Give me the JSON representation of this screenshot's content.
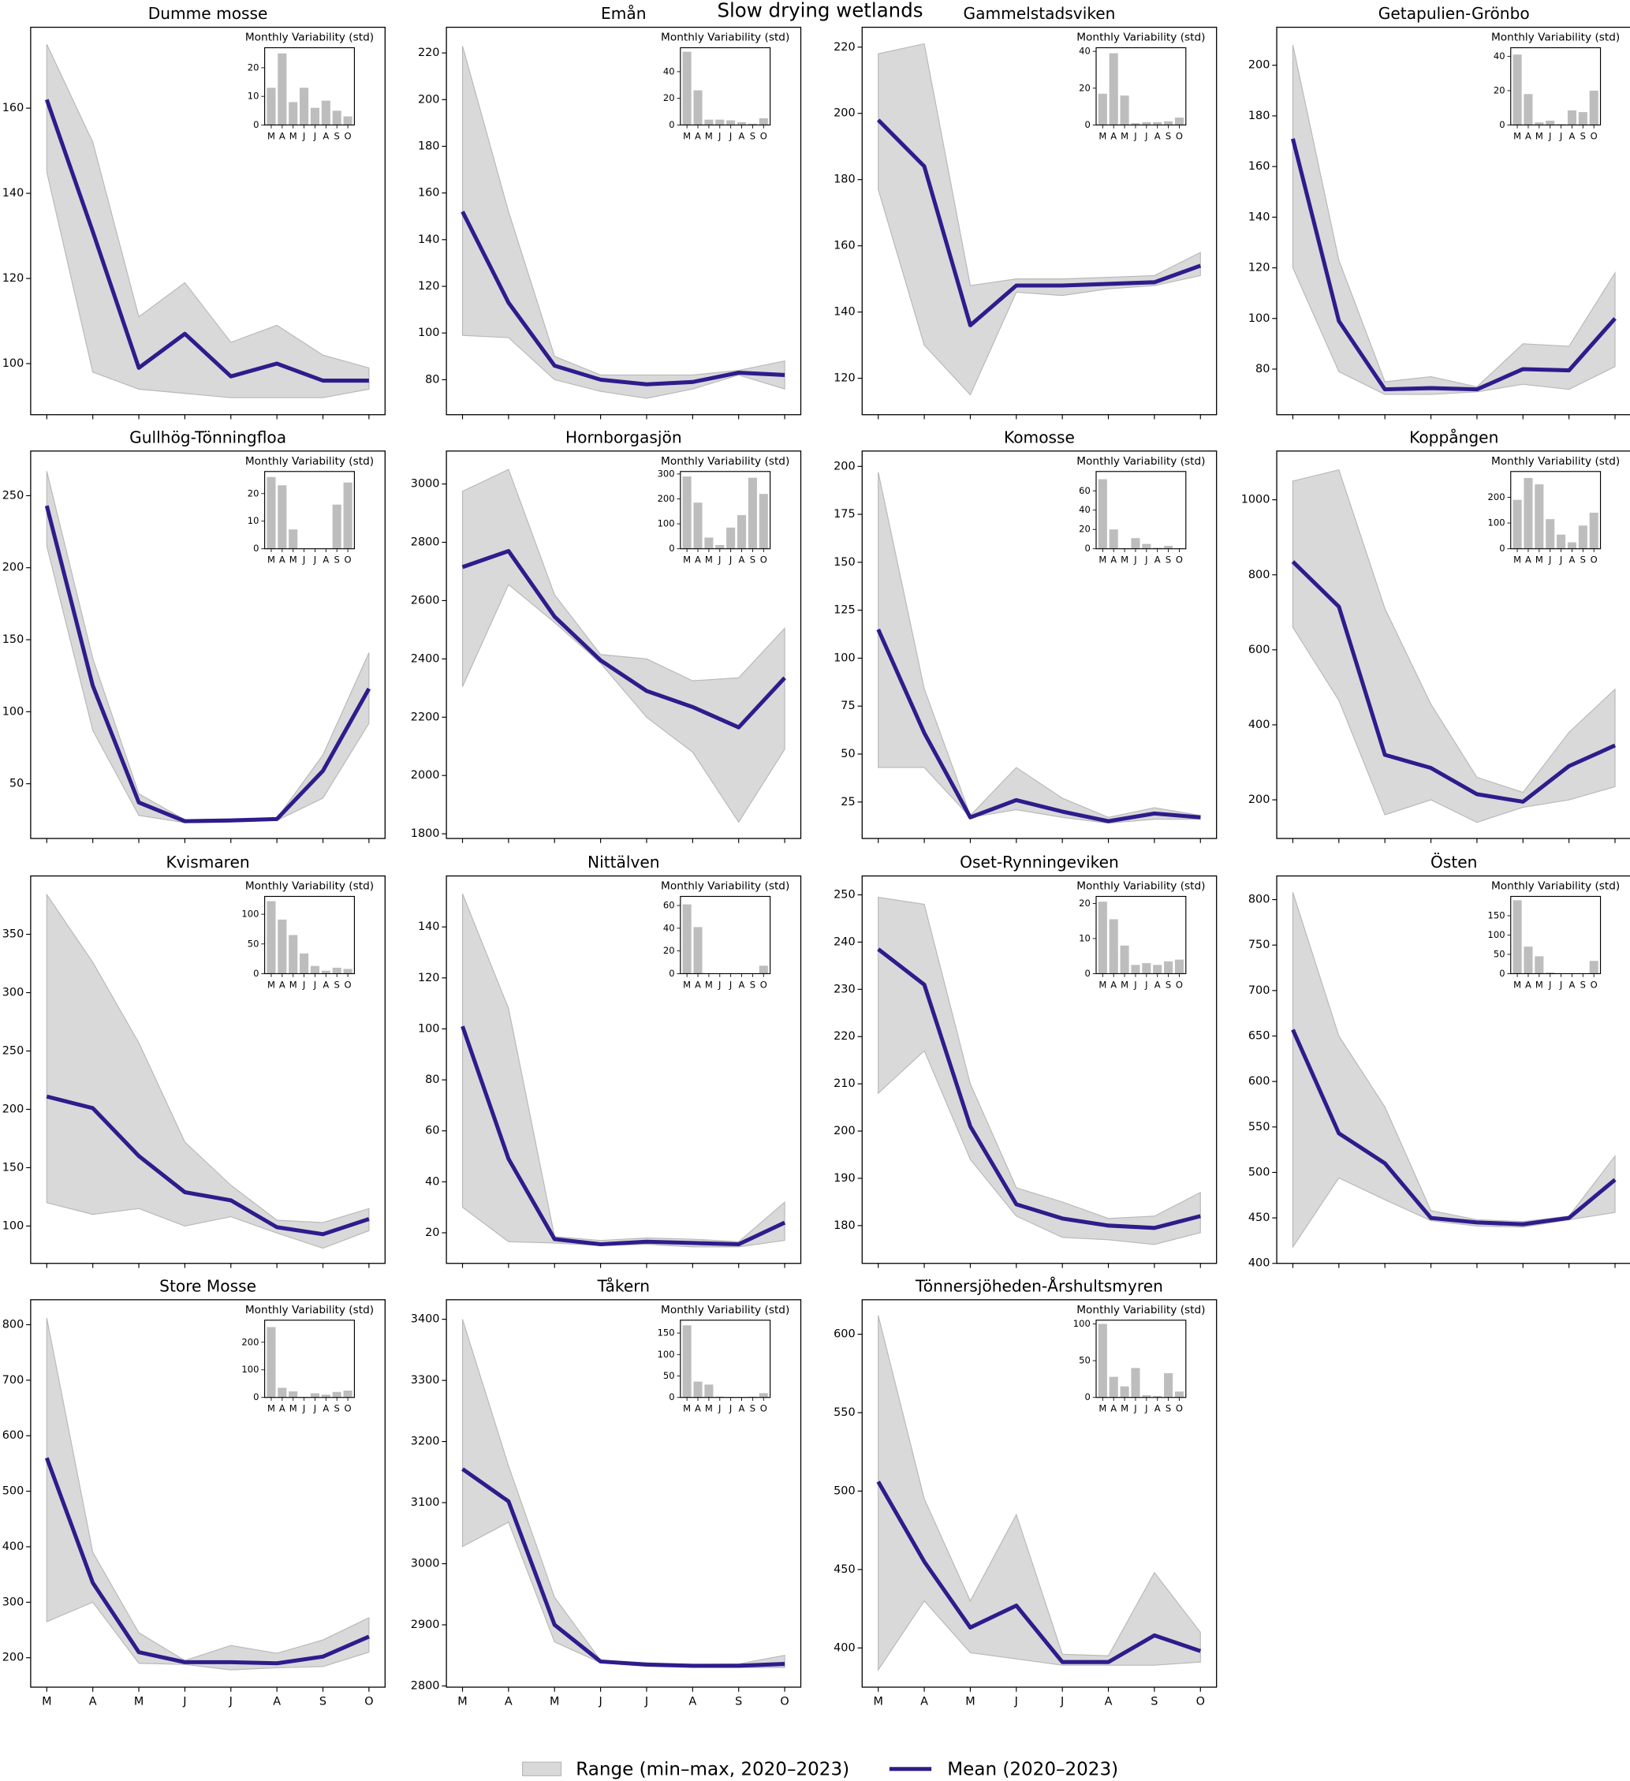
{
  "title": "Slow drying wetlands",
  "legend": [
    {
      "name": "Range (min–max, 2020–2023)",
      "color": "#d9d9d9"
    },
    {
      "name": "Mean (2020–2023)",
      "color": "#2e1c8c"
    }
  ],
  "chart_data": [
    {
      "type": "line",
      "title": "Dumme mosse",
      "categories": [
        null,
        null,
        null,
        null,
        null,
        null,
        null,
        null
      ],
      "values": [
        162,
        131,
        99,
        107,
        97,
        100,
        96,
        96
      ],
      "max": [
        175,
        152,
        111,
        119,
        105,
        109,
        102,
        99
      ],
      "min": [
        145,
        98,
        94,
        93,
        92,
        92,
        92,
        94
      ],
      "ylim": [
        88,
        179
      ],
      "yticks": [
        100,
        120,
        140,
        160
      ],
      "inset": {
        "type": "bar",
        "title": "Monthly Variability (std)",
        "categories": [
          "M",
          "A",
          "M",
          "J",
          "J",
          "A",
          "S",
          "O"
        ],
        "values": [
          13,
          25,
          8,
          13,
          6,
          8.5,
          5,
          3
        ],
        "ylim": [
          0,
          27
        ],
        "yticks": [
          0,
          10,
          20
        ],
        "color": "#bdbdbd"
      }
    },
    {
      "type": "line",
      "title": "Emån",
      "categories": [
        null,
        null,
        null,
        null,
        null,
        null,
        null,
        null
      ],
      "values": [
        152,
        113,
        86,
        80,
        78,
        79,
        83,
        82
      ],
      "max": [
        223,
        152,
        90,
        82,
        82,
        82,
        84,
        88
      ],
      "min": [
        99,
        98,
        80,
        75,
        72,
        76,
        82,
        76
      ],
      "ylim": [
        65,
        231
      ],
      "yticks": [
        80,
        100,
        120,
        140,
        160,
        180,
        200,
        220
      ],
      "inset": {
        "type": "bar",
        "title": "Monthly Variability (std)",
        "categories": [
          "M",
          "A",
          "M",
          "J",
          "J",
          "A",
          "S",
          "O"
        ],
        "values": [
          55,
          26,
          4,
          4,
          3.5,
          2,
          1,
          5
        ],
        "ylim": [
          0,
          58
        ],
        "yticks": [
          0,
          20,
          40
        ],
        "color": "#bdbdbd"
      }
    },
    {
      "type": "line",
      "title": "Gammelstadsviken",
      "categories": [
        null,
        null,
        null,
        null,
        null,
        null,
        null,
        null
      ],
      "values": [
        198,
        184,
        136,
        148,
        148,
        148.5,
        149,
        154
      ],
      "max": [
        218,
        221,
        148,
        150,
        150,
        150.5,
        151,
        158
      ],
      "min": [
        177,
        130,
        115,
        146,
        145,
        147,
        148,
        151
      ],
      "ylim": [
        109,
        226
      ],
      "yticks": [
        120,
        140,
        160,
        180,
        200,
        220
      ],
      "inset": {
        "type": "bar",
        "title": "Monthly Variability (std)",
        "categories": [
          "M",
          "A",
          "M",
          "J",
          "J",
          "A",
          "S",
          "O"
        ],
        "values": [
          17,
          39,
          16,
          1,
          1.5,
          1.5,
          2,
          4
        ],
        "ylim": [
          0,
          42
        ],
        "yticks": [
          0,
          20,
          40
        ],
        "color": "#bdbdbd"
      }
    },
    {
      "type": "line",
      "title": "Getapulien-Grönbo",
      "categories": [
        null,
        null,
        null,
        null,
        null,
        null,
        null,
        null
      ],
      "values": [
        171,
        99,
        72,
        72.5,
        72,
        80,
        79.5,
        100
      ],
      "max": [
        208,
        123,
        75,
        77,
        73,
        90,
        89,
        118
      ],
      "min": [
        120,
        79,
        70,
        70,
        71,
        74,
        72,
        81
      ],
      "ylim": [
        62,
        215
      ],
      "yticks": [
        80,
        100,
        120,
        140,
        160,
        180,
        200
      ],
      "inset": {
        "type": "bar",
        "title": "Monthly Variability (std)",
        "categories": [
          "M",
          "A",
          "M",
          "J",
          "J",
          "A",
          "S",
          "O"
        ],
        "values": [
          41,
          18,
          1.5,
          2.5,
          0.5,
          8.5,
          7.5,
          20
        ],
        "ylim": [
          0,
          45
        ],
        "yticks": [
          0,
          20,
          40
        ],
        "color": "#bdbdbd"
      }
    },
    {
      "type": "line",
      "title": "Gullhög-Tönningfloa",
      "categories": [
        null,
        null,
        null,
        null,
        null,
        null,
        null,
        null
      ],
      "values": [
        243,
        118,
        37,
        24,
        24.5,
        25.5,
        59,
        116
      ],
      "max": [
        267,
        137,
        43,
        25,
        25,
        26,
        70,
        141
      ],
      "min": [
        215,
        87,
        28,
        23,
        23.5,
        24.5,
        40,
        92
      ],
      "ylim": [
        12,
        281
      ],
      "yticks": [
        50,
        100,
        150,
        200,
        250
      ],
      "inset": {
        "type": "bar",
        "title": "Monthly Variability (std)",
        "categories": [
          "M",
          "A",
          "M",
          "J",
          "J",
          "A",
          "S",
          "O"
        ],
        "values": [
          26,
          23,
          7,
          0,
          0,
          0,
          16,
          24
        ],
        "ylim": [
          0,
          28
        ],
        "yticks": [
          0,
          10,
          20
        ],
        "color": "#bdbdbd"
      }
    },
    {
      "type": "line",
      "title": "Hornborgasjön",
      "categories": [
        null,
        null,
        null,
        null,
        null,
        null,
        null,
        null
      ],
      "values": [
        2715,
        2770,
        2545,
        2395,
        2290,
        2235,
        2165,
        2335
      ],
      "max": [
        2975,
        3050,
        2620,
        2415,
        2400,
        2325,
        2335,
        2505
      ],
      "min": [
        2305,
        2655,
        2525,
        2385,
        2200,
        2080,
        1840,
        2090
      ],
      "ylim": [
        1784,
        3113
      ],
      "yticks": [
        1800,
        2000,
        2200,
        2400,
        2600,
        2800,
        3000
      ],
      "inset": {
        "type": "bar",
        "title": "Monthly Variability (std)",
        "categories": [
          "M",
          "A",
          "M",
          "J",
          "J",
          "A",
          "S",
          "O"
        ],
        "values": [
          290,
          185,
          45,
          15,
          85,
          135,
          285,
          220
        ],
        "ylim": [
          0,
          310
        ],
        "yticks": [
          0,
          100,
          200,
          300
        ],
        "color": "#bdbdbd"
      }
    },
    {
      "type": "line",
      "title": "Komosse",
      "categories": [
        null,
        null,
        null,
        null,
        null,
        null,
        null,
        null
      ],
      "values": [
        115,
        61,
        17,
        26,
        20,
        15,
        19,
        17
      ],
      "max": [
        197,
        84,
        18,
        43,
        27,
        17,
        22,
        18
      ],
      "min": [
        43,
        43,
        17,
        21,
        17,
        14,
        16,
        16
      ],
      "ylim": [
        6,
        208
      ],
      "yticks": [
        25,
        50,
        75,
        100,
        125,
        150,
        175,
        200
      ],
      "inset": {
        "type": "bar",
        "title": "Monthly Variability (std)",
        "categories": [
          "M",
          "A",
          "M",
          "J",
          "J",
          "A",
          "S",
          "O"
        ],
        "values": [
          72,
          20,
          0.5,
          11,
          5,
          1,
          3,
          0.5
        ],
        "ylim": [
          0,
          80
        ],
        "yticks": [
          0,
          20,
          40,
          60
        ],
        "color": "#bdbdbd"
      }
    },
    {
      "type": "line",
      "title": "Koppången",
      "categories": [
        null,
        null,
        null,
        null,
        null,
        null,
        null,
        null
      ],
      "values": [
        835,
        715,
        320,
        285,
        215,
        195,
        290,
        345
      ],
      "max": [
        1050,
        1080,
        710,
        455,
        260,
        220,
        380,
        495
      ],
      "min": [
        660,
        465,
        160,
        200,
        140,
        180,
        200,
        235
      ],
      "ylim": [
        97,
        1130
      ],
      "yticks": [
        200,
        400,
        600,
        800,
        1000
      ],
      "inset": {
        "type": "bar",
        "title": "Monthly Variability (std)",
        "categories": [
          "M",
          "A",
          "M",
          "J",
          "J",
          "A",
          "S",
          "O"
        ],
        "values": [
          190,
          275,
          250,
          115,
          55,
          25,
          90,
          140
        ],
        "ylim": [
          0,
          300
        ],
        "yticks": [
          0,
          100,
          200
        ],
        "color": "#bdbdbd"
      }
    },
    {
      "type": "line",
      "title": "Kvismaren",
      "categories": [
        null,
        null,
        null,
        null,
        null,
        null,
        null,
        null
      ],
      "values": [
        211,
        201,
        160,
        129,
        122,
        99,
        93,
        106
      ],
      "max": [
        384,
        326,
        257,
        172,
        135,
        105,
        103,
        115
      ],
      "min": [
        120,
        110,
        115,
        100,
        108,
        94,
        81,
        96
      ],
      "ylim": [
        68,
        400
      ],
      "yticks": [
        100,
        150,
        200,
        250,
        300,
        350
      ],
      "inset": {
        "type": "bar",
        "title": "Monthly Variability (std)",
        "categories": [
          "M",
          "A",
          "M",
          "J",
          "J",
          "A",
          "S",
          "O"
        ],
        "values": [
          122,
          91,
          65,
          34,
          13,
          5,
          10,
          8
        ],
        "ylim": [
          0,
          130
        ],
        "yticks": [
          0,
          50,
          100
        ],
        "color": "#bdbdbd"
      }
    },
    {
      "type": "line",
      "title": "Nittälven",
      "categories": [
        null,
        null,
        null,
        null,
        null,
        null,
        null,
        null
      ],
      "values": [
        101,
        49,
        17.5,
        15.5,
        16.5,
        16,
        15.5,
        24
      ],
      "max": [
        153,
        108,
        18.5,
        17,
        18,
        17.5,
        16.5,
        32
      ],
      "min": [
        30,
        16.5,
        16,
        15,
        15.5,
        14.5,
        14.5,
        17
      ],
      "ylim": [
        8,
        160
      ],
      "yticks": [
        20,
        40,
        60,
        80,
        100,
        120,
        140
      ],
      "inset": {
        "type": "bar",
        "title": "Monthly Variability (std)",
        "categories": [
          "M",
          "A",
          "M",
          "J",
          "J",
          "A",
          "S",
          "O"
        ],
        "values": [
          61,
          41,
          0,
          0,
          0,
          0,
          0,
          7
        ],
        "ylim": [
          0,
          68
        ],
        "yticks": [
          0,
          20,
          40,
          60
        ],
        "color": "#bdbdbd"
      }
    },
    {
      "type": "line",
      "title": "Oset-Rynningeviken",
      "categories": [
        null,
        null,
        null,
        null,
        null,
        null,
        null,
        null
      ],
      "values": [
        238.5,
        231,
        201,
        184.5,
        181.5,
        180,
        179.5,
        182
      ],
      "max": [
        249.5,
        248,
        210,
        188,
        185,
        181.5,
        182,
        187
      ],
      "min": [
        208,
        217,
        194,
        182,
        177.5,
        177,
        176,
        178.5
      ],
      "ylim": [
        172,
        254
      ],
      "yticks": [
        180,
        190,
        200,
        210,
        220,
        230,
        240,
        250
      ],
      "inset": {
        "type": "bar",
        "title": "Monthly Variability (std)",
        "categories": [
          "M",
          "A",
          "M",
          "J",
          "J",
          "A",
          "S",
          "O"
        ],
        "values": [
          20.5,
          15.5,
          8,
          2.5,
          3,
          2.5,
          3.5,
          4
        ],
        "ylim": [
          0,
          22
        ],
        "yticks": [
          0,
          10,
          20
        ],
        "color": "#bdbdbd"
      }
    },
    {
      "type": "line",
      "title": "Östen",
      "categories": [
        null,
        null,
        null,
        null,
        null,
        null,
        null,
        null
      ],
      "values": [
        657,
        543,
        510,
        450,
        445,
        443,
        450,
        492
      ],
      "max": [
        808,
        650,
        572,
        458,
        448,
        446,
        452,
        518
      ],
      "min": [
        418,
        494,
        470,
        447,
        441,
        440,
        448,
        456
      ],
      "ylim": [
        400,
        826
      ],
      "yticks": [
        400,
        450,
        500,
        550,
        600,
        650,
        700,
        750,
        800
      ],
      "inset": {
        "type": "bar",
        "title": "Monthly Variability (std)",
        "categories": [
          "M",
          "A",
          "M",
          "J",
          "J",
          "A",
          "S",
          "O"
        ],
        "values": [
          190,
          70,
          45,
          3,
          0,
          0,
          0,
          33
        ],
        "ylim": [
          0,
          200
        ],
        "yticks": [
          0,
          50,
          100,
          150
        ],
        "color": "#bdbdbd"
      }
    },
    {
      "type": "line",
      "title": "Store Mosse",
      "categories": [
        "M",
        "A",
        "M",
        "J",
        "J",
        "A",
        "S",
        "O"
      ],
      "values": [
        560,
        335,
        210,
        192,
        192,
        190,
        202,
        238
      ],
      "max": [
        812,
        390,
        245,
        195,
        222,
        208,
        232,
        272
      ],
      "min": [
        265,
        300,
        190,
        188,
        178,
        182,
        184,
        210
      ],
      "ylim": [
        147,
        845
      ],
      "yticks": [
        200,
        300,
        400,
        500,
        600,
        700,
        800
      ],
      "inset": {
        "type": "bar",
        "title": "Monthly Variability (std)",
        "categories": [
          "M",
          "A",
          "M",
          "J",
          "J",
          "A",
          "S",
          "O"
        ],
        "values": [
          255,
          35,
          22,
          2,
          15,
          10,
          20,
          25
        ],
        "ylim": [
          0,
          280
        ],
        "yticks": [
          0,
          100,
          200
        ],
        "color": "#bdbdbd"
      }
    },
    {
      "type": "line",
      "title": "Tåkern",
      "categories": [
        "M",
        "A",
        "M",
        "J",
        "J",
        "A",
        "S",
        "O"
      ],
      "values": [
        3155,
        3102,
        2900,
        2840,
        2835,
        2833,
        2833,
        2836
      ],
      "max": [
        3400,
        3160,
        2945,
        2842,
        2838,
        2835,
        2836,
        2850
      ],
      "min": [
        3028,
        3068,
        2872,
        2838,
        2832,
        2830,
        2830,
        2830
      ],
      "ylim": [
        2798,
        3432
      ],
      "yticks": [
        2800,
        2900,
        3000,
        3100,
        3200,
        3300,
        3400
      ],
      "inset": {
        "type": "bar",
        "title": "Monthly Variability (std)",
        "categories": [
          "M",
          "A",
          "M",
          "J",
          "J",
          "A",
          "S",
          "O"
        ],
        "values": [
          168,
          37,
          30,
          2,
          1,
          1,
          2,
          10
        ],
        "ylim": [
          0,
          180
        ],
        "yticks": [
          0,
          50,
          100,
          150
        ],
        "color": "#bdbdbd"
      }
    },
    {
      "type": "line",
      "title": "Tönnersjöheden-Årshultsmyren",
      "categories": [
        "M",
        "A",
        "M",
        "J",
        "J",
        "A",
        "S",
        "O"
      ],
      "values": [
        506,
        455,
        413,
        427,
        391,
        391,
        408,
        398
      ],
      "max": [
        612,
        495,
        430,
        485,
        396,
        395,
        448,
        410
      ],
      "min": [
        386,
        430,
        397,
        393,
        389,
        389,
        389,
        391
      ],
      "ylim": [
        375,
        622
      ],
      "yticks": [
        400,
        450,
        500,
        550,
        600
      ],
      "inset": {
        "type": "bar",
        "title": "Monthly Variability (std)",
        "categories": [
          "M",
          "A",
          "M",
          "J",
          "J",
          "A",
          "S",
          "O"
        ],
        "values": [
          100,
          28,
          15,
          40,
          3,
          2,
          33,
          8
        ],
        "ylim": [
          0,
          105
        ],
        "yticks": [
          0,
          50,
          100
        ],
        "color": "#bdbdbd"
      }
    }
  ]
}
